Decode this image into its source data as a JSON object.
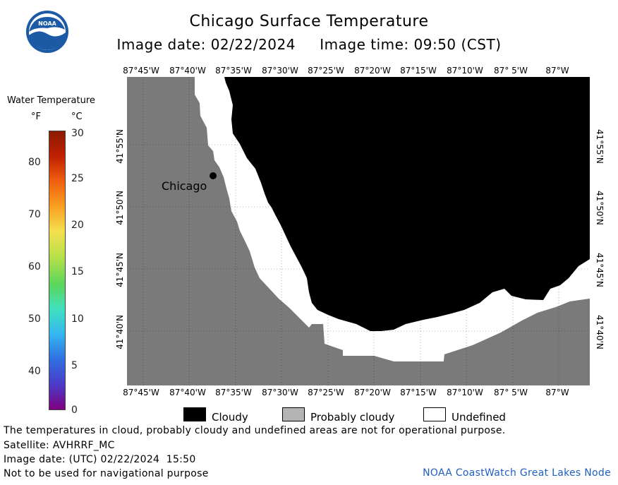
{
  "header": {
    "title": "Chicago Surface Temperature",
    "subtitle": "Image date: 02/22/2024     Image time: 09:50 (CST)",
    "logo_text": "NOAA"
  },
  "scale": {
    "title": "Water Temperature",
    "unit_f": "°F",
    "unit_c": "°C",
    "f_ticks": [
      "80",
      "70",
      "60",
      "50",
      "40"
    ],
    "c_ticks": [
      "30",
      "25",
      "20",
      "15",
      "10",
      "5",
      "0"
    ],
    "colors": [
      "#800080",
      "#4b3bc8",
      "#2f6fe0",
      "#35b6f0",
      "#40e0c0",
      "#5cd65c",
      "#b8e04a",
      "#f4e050",
      "#f9a020",
      "#f06010",
      "#c02000",
      "#8b1a00"
    ]
  },
  "map": {
    "lon_labels": [
      "87°45'W",
      "87°40'W",
      "87°35'W",
      "87°30'W",
      "87°25'W",
      "87°20'W",
      "87°15'W",
      "87°10'W",
      "87° 5'W",
      "87°W"
    ],
    "lat_labels": [
      "41°55'N",
      "41°50'N",
      "41°45'N",
      "41°40'N"
    ],
    "city_label": "Chicago",
    "colors": {
      "land": "#7a7a7a",
      "cloudy": "#000000",
      "probably_cloudy": "#b4b4b4",
      "undefined": "#ffffff"
    }
  },
  "legend": {
    "cloudy": "Cloudy",
    "probably_cloudy": "Probably cloudy",
    "undefined": "Undefined"
  },
  "notes": {
    "line1": "The temperatures in cloud, probably cloudy and undefined areas are not for operational purpose.",
    "line2": "Satellite: AVHRRF_MC",
    "line3": "Image date: (UTC) 02/22/2024  15:50",
    "line4": "Not to be used for navigational purpose"
  },
  "credit": "NOAA CoastWatch Great Lakes Node"
}
